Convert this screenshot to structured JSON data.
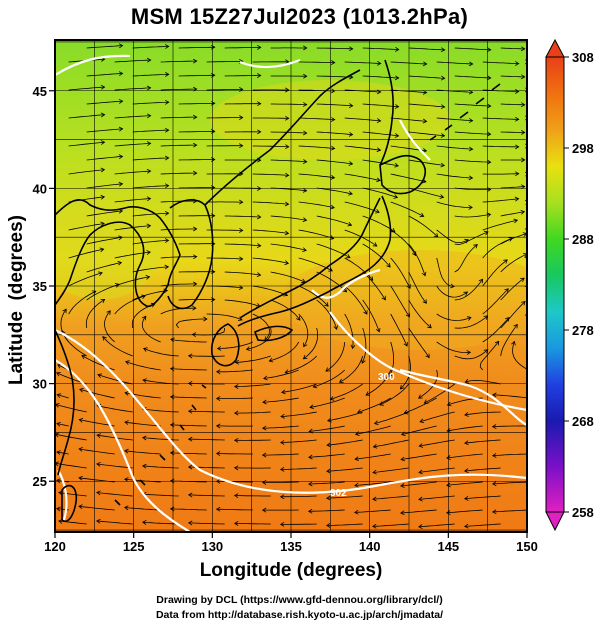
{
  "title": "MSM 15Z27Jul2023 (1013.2hPa)",
  "xlabel": "Longitude (degrees)",
  "ylabel": "Latitude  (degrees)",
  "credits": [
    "Drawing by DCL (https://www.gfd-dennou.org/library/dcl/)",
    "Data from http://database.rish.kyoto-u.ac.jp/arch/jmadata/"
  ],
  "map_data": {
    "type": "surface temperature map with wind streamlines",
    "lon_range": [
      120,
      150
    ],
    "lat_range": [
      22.4,
      47.6
    ],
    "lon_ticks": [
      "120",
      "125",
      "130",
      "135",
      "140",
      "145",
      "150"
    ],
    "lat_ticks": [
      "25",
      "30",
      "35",
      "40",
      "45"
    ],
    "grid": true,
    "colorbar": {
      "ticks": [
        "308",
        "298",
        "288",
        "278",
        "268",
        "258"
      ],
      "min": 258,
      "max": 308,
      "colors": [
        "#e020c0",
        "#7a10c8",
        "#1a1ab0",
        "#2040e0",
        "#1a98e0",
        "#1ec8c8",
        "#18c860",
        "#40d820",
        "#a8e020",
        "#e8e010",
        "#f0a018",
        "#f07010",
        "#e84018"
      ]
    },
    "contour_labels": [
      "300",
      "302"
    ],
    "colors": {
      "land_outline": "#000000",
      "contour": "#ffffff",
      "streamline": "#000000"
    }
  }
}
